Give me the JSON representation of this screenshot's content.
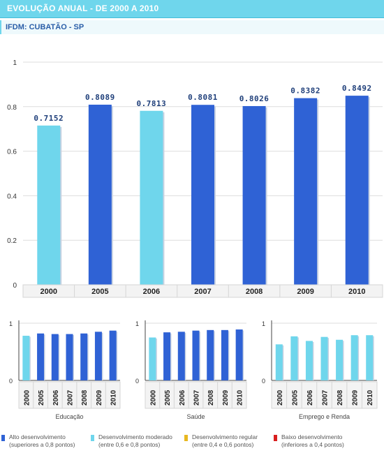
{
  "header": {
    "title": "EVOLUÇÃO ANUAL - DE 2000 A 2010",
    "subtitle": "IFDM: CUBATÃO - SP"
  },
  "colors": {
    "high": "#2f62d5",
    "moderate": "#6fd6ec",
    "regular": "#e8b820",
    "low": "#d91e1e"
  },
  "legend": [
    {
      "line1": "Alto desenvolvimento",
      "line2": "(superiores a 0,8 pontos)",
      "color": "#2f62d5"
    },
    {
      "line1": "Desenvolvimento moderado",
      "line2": "(entre 0,6 e 0,8 pontos)",
      "color": "#6fd6ec"
    },
    {
      "line1": "Desenvolvimento regular",
      "line2": "(entre 0,4 e 0,6 pontos)",
      "color": "#e8b820"
    },
    {
      "line1": "Baixo desenvolvimento",
      "line2": "(inferiores a 0,4 pontos)",
      "color": "#d91e1e"
    }
  ],
  "chart_data": [
    {
      "type": "bar",
      "categories": [
        "2000",
        "2005",
        "2006",
        "2007",
        "2008",
        "2009",
        "2010"
      ],
      "values": [
        0.7152,
        0.8089,
        0.7813,
        0.8081,
        0.8026,
        0.8382,
        0.8492
      ],
      "data_labels": [
        "0.7152",
        "0.8089",
        "0.7813",
        "0.8081",
        "0.8026",
        "0.8382",
        "0.8492"
      ],
      "ylim": [
        0,
        1
      ],
      "yticks": [
        "0",
        "0.2",
        "0.4",
        "0.6",
        "0.8",
        "1"
      ],
      "xlabel": "",
      "grid": true
    },
    {
      "type": "bar",
      "categories": [
        "2000",
        "2005",
        "2006",
        "2007",
        "2008",
        "2009",
        "2010"
      ],
      "values": [
        0.78,
        0.82,
        0.81,
        0.81,
        0.82,
        0.85,
        0.87
      ],
      "ylim": [
        0,
        1
      ],
      "yticks": [
        "0",
        "1"
      ],
      "xlabel": "Educação"
    },
    {
      "type": "bar",
      "categories": [
        "2000",
        "2005",
        "2006",
        "2007",
        "2008",
        "2009",
        "2010"
      ],
      "values": [
        0.75,
        0.84,
        0.85,
        0.87,
        0.88,
        0.88,
        0.89
      ],
      "ylim": [
        0,
        1
      ],
      "yticks": [
        "0",
        "1"
      ],
      "xlabel": "Saúde"
    },
    {
      "type": "bar",
      "categories": [
        "2000",
        "2005",
        "2006",
        "2007",
        "2008",
        "2009",
        "2010"
      ],
      "values": [
        0.63,
        0.77,
        0.69,
        0.76,
        0.71,
        0.79,
        0.79
      ],
      "ylim": [
        0,
        1
      ],
      "yticks": [
        "0",
        "1"
      ],
      "xlabel": "Emprego e Renda"
    }
  ]
}
